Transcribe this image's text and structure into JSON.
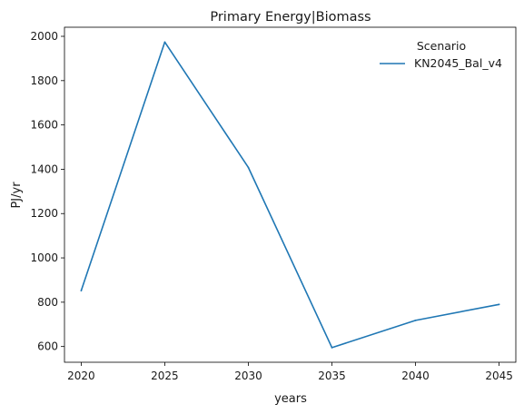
{
  "chart_data": {
    "type": "line",
    "title": "Primary Energy|Biomass",
    "xlabel": "years",
    "ylabel": "PJ/yr",
    "x": [
      2020,
      2025,
      2030,
      2035,
      2040,
      2045
    ],
    "xticks": [
      2020,
      2025,
      2030,
      2035,
      2040,
      2045
    ],
    "yticks": [
      600,
      800,
      1000,
      1200,
      1400,
      1600,
      1800,
      2000
    ],
    "xlim": [
      2019,
      2046
    ],
    "ylim": [
      529,
      2041
    ],
    "series": [
      {
        "name": "KN2045_Bal_v4",
        "values": [
          852,
          1974,
          1408,
          595,
          718,
          790
        ],
        "color": "#1f77b4"
      }
    ],
    "legend": {
      "title": "Scenario",
      "placement": "top-right"
    },
    "grid": false
  }
}
